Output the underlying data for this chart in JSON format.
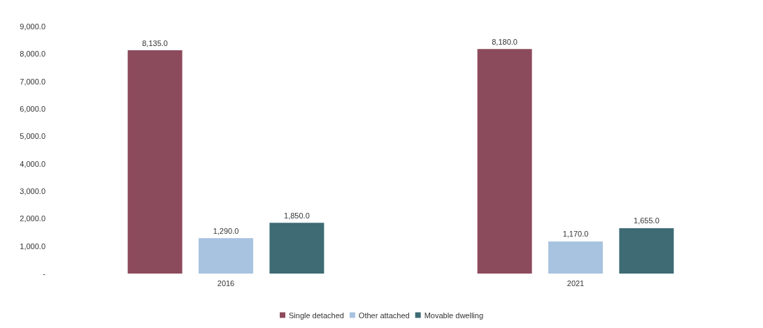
{
  "chart_data": {
    "type": "bar",
    "categories": [
      "2016",
      "2021"
    ],
    "series": [
      {
        "name": "Single detached",
        "color": "#8c4b5c",
        "values": [
          8135,
          8180
        ],
        "value_labels": [
          "8,135.0",
          "8,180.0"
        ]
      },
      {
        "name": "Other attached",
        "color": "#a8c3e0",
        "values": [
          1290,
          1170
        ],
        "value_labels": [
          "1,290.0",
          "1,170.0"
        ]
      },
      {
        "name": "Movable dwelling",
        "color": "#3e6b74",
        "values": [
          1850,
          1655
        ],
        "value_labels": [
          "1,850.0",
          "1,655.0"
        ]
      }
    ],
    "ylim": [
      0,
      9000
    ],
    "yticks": [
      {
        "value": 0,
        "label": "-"
      },
      {
        "value": 1000,
        "label": "1,000.0"
      },
      {
        "value": 2000,
        "label": "2,000.0"
      },
      {
        "value": 3000,
        "label": "3,000.0"
      },
      {
        "value": 4000,
        "label": "4,000.0"
      },
      {
        "value": 5000,
        "label": "5,000.0"
      },
      {
        "value": 6000,
        "label": "6,000.0"
      },
      {
        "value": 7000,
        "label": "7,000.0"
      },
      {
        "value": 8000,
        "label": "8,000.0"
      },
      {
        "value": 9000,
        "label": "9,000.0"
      }
    ],
    "grid": false,
    "legend": "bottom"
  }
}
